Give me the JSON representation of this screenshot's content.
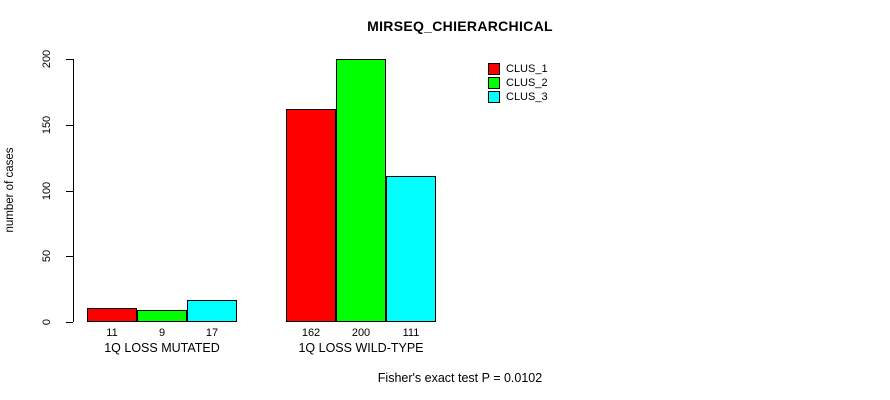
{
  "chart_data": {
    "type": "bar",
    "title": "MIRSEQ_CHIERARCHICAL",
    "ylabel": "number of cases",
    "xlabel": "",
    "categories": [
      "1Q LOSS MUTATED",
      "1Q LOSS WILD-TYPE"
    ],
    "series": [
      {
        "name": "CLUS_1",
        "color": "#ff0000",
        "values": [
          11,
          162
        ]
      },
      {
        "name": "CLUS_2",
        "color": "#00ff00",
        "values": [
          9,
          200
        ]
      },
      {
        "name": "CLUS_3",
        "color": "#00ffff",
        "values": [
          17,
          111
        ]
      }
    ],
    "value_labels": [
      [
        11,
        9,
        17
      ],
      [
        162,
        200,
        111
      ]
    ],
    "ylim": [
      0,
      200
    ],
    "yticks": [
      0,
      50,
      100,
      150,
      200
    ],
    "grid": false,
    "legend_position": "top-right",
    "annotation": "Fisher's exact test P = 0.0102"
  },
  "colors": {
    "axis": "#000000",
    "text": "#000000",
    "background": "#ffffff"
  }
}
